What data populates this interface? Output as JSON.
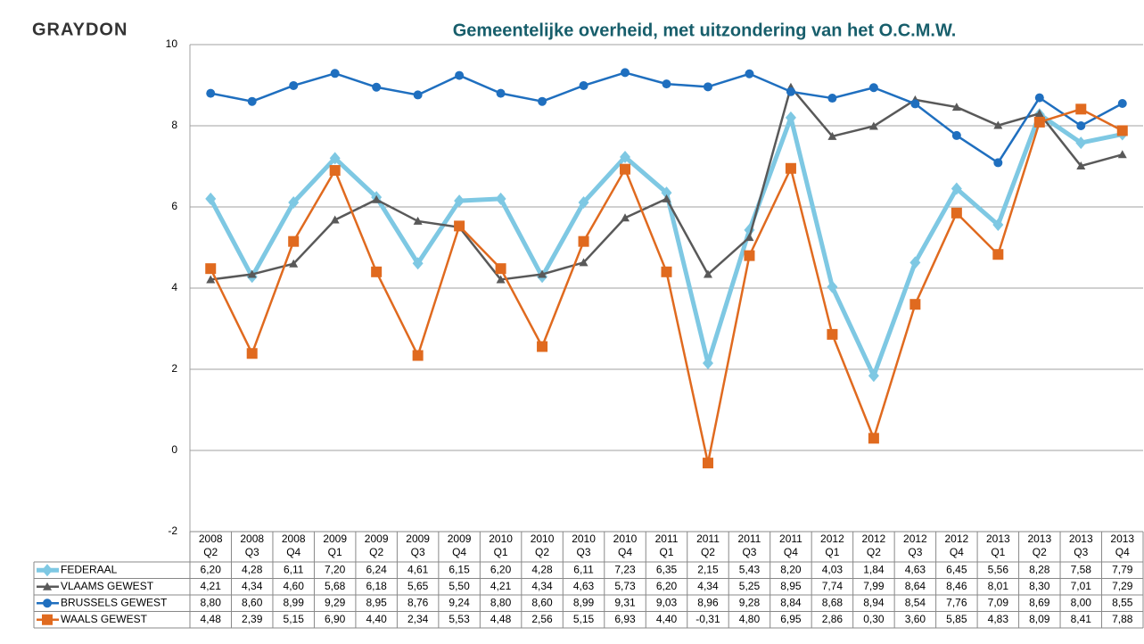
{
  "brand": "GRAYDON",
  "chart_data": {
    "type": "line",
    "title": "Gemeentelijke overheid, met uitzondering van het O.C.M.W.",
    "categories": [
      [
        "2008",
        "Q2"
      ],
      [
        "2008",
        "Q3"
      ],
      [
        "2008",
        "Q4"
      ],
      [
        "2009",
        "Q1"
      ],
      [
        "2009",
        "Q2"
      ],
      [
        "2009",
        "Q3"
      ],
      [
        "2009",
        "Q4"
      ],
      [
        "2010",
        "Q1"
      ],
      [
        "2010",
        "Q2"
      ],
      [
        "2010",
        "Q3"
      ],
      [
        "2010",
        "Q4"
      ],
      [
        "2011",
        "Q1"
      ],
      [
        "2011",
        "Q2"
      ],
      [
        "2011",
        "Q3"
      ],
      [
        "2011",
        "Q4"
      ],
      [
        "2012",
        "Q1"
      ],
      [
        "2012",
        "Q2"
      ],
      [
        "2012",
        "Q3"
      ],
      [
        "2012",
        "Q4"
      ],
      [
        "2013",
        "Q1"
      ],
      [
        "2013",
        "Q2"
      ],
      [
        "2013",
        "Q3"
      ],
      [
        "2013",
        "Q4"
      ]
    ],
    "ylim": [
      -2,
      10
    ],
    "yticks": [
      -2,
      0,
      2,
      4,
      6,
      8,
      10
    ],
    "grid": true,
    "series": [
      {
        "name": "FEDERAAL",
        "color": "#7ec8e3",
        "marker": "diamond",
        "width": 5,
        "values": [
          6.2,
          4.28,
          6.11,
          7.2,
          6.24,
          4.61,
          6.15,
          6.2,
          4.28,
          6.11,
          7.23,
          6.35,
          2.15,
          5.43,
          8.2,
          4.03,
          1.84,
          4.63,
          6.45,
          5.56,
          8.28,
          7.58,
          7.79
        ],
        "value_labels": [
          "6,20",
          "4,28",
          "6,11",
          "7,20",
          "6,24",
          "4,61",
          "6,15",
          "6,20",
          "4,28",
          "6,11",
          "7,23",
          "6,35",
          "2,15",
          "5,43",
          "8,20",
          "4,03",
          "1,84",
          "4,63",
          "6,45",
          "5,56",
          "8,28",
          "7,58",
          "7,79"
        ]
      },
      {
        "name": "VLAAMS GEWEST",
        "color": "#595959",
        "marker": "triangle",
        "width": 2.5,
        "values": [
          4.21,
          4.34,
          4.6,
          5.68,
          6.18,
          5.65,
          5.5,
          4.21,
          4.34,
          4.63,
          5.73,
          6.2,
          4.34,
          5.25,
          8.95,
          7.74,
          7.99,
          8.64,
          8.46,
          8.01,
          8.3,
          7.01,
          7.29
        ],
        "value_labels": [
          "4,21",
          "4,34",
          "4,60",
          "5,68",
          "6,18",
          "5,65",
          "5,50",
          "4,21",
          "4,34",
          "4,63",
          "5,73",
          "6,20",
          "4,34",
          "5,25",
          "8,95",
          "7,74",
          "7,99",
          "8,64",
          "8,46",
          "8,01",
          "8,30",
          "7,01",
          "7,29"
        ]
      },
      {
        "name": "BRUSSELS GEWEST",
        "color": "#1f6fbf",
        "marker": "circle",
        "width": 2.5,
        "values": [
          8.8,
          8.6,
          8.99,
          9.29,
          8.95,
          8.76,
          9.24,
          8.8,
          8.6,
          8.99,
          9.31,
          9.03,
          8.96,
          9.28,
          8.84,
          8.68,
          8.94,
          8.54,
          7.76,
          7.09,
          8.69,
          8.0,
          8.55
        ],
        "value_labels": [
          "8,80",
          "8,60",
          "8,99",
          "9,29",
          "8,95",
          "8,76",
          "9,24",
          "8,80",
          "8,60",
          "8,99",
          "9,31",
          "9,03",
          "8,96",
          "9,28",
          "8,84",
          "8,68",
          "8,94",
          "8,54",
          "7,76",
          "7,09",
          "8,69",
          "8,00",
          "8,55"
        ]
      },
      {
        "name": "WAALS GEWEST",
        "color": "#e06a1f",
        "marker": "square",
        "width": 2.5,
        "values": [
          4.48,
          2.39,
          5.15,
          6.9,
          4.4,
          2.34,
          5.53,
          4.48,
          2.56,
          5.15,
          6.93,
          4.4,
          -0.31,
          4.8,
          6.95,
          2.86,
          0.3,
          3.6,
          5.85,
          4.83,
          8.09,
          8.41,
          7.88
        ],
        "value_labels": [
          "4,48",
          "2,39",
          "5,15",
          "6,90",
          "4,40",
          "2,34",
          "5,53",
          "4,48",
          "2,56",
          "5,15",
          "6,93",
          "4,40",
          "-0,31",
          "4,80",
          "6,95",
          "2,86",
          "0,30",
          "3,60",
          "5,85",
          "4,83",
          "8,09",
          "8,41",
          "7,88"
        ]
      }
    ]
  }
}
